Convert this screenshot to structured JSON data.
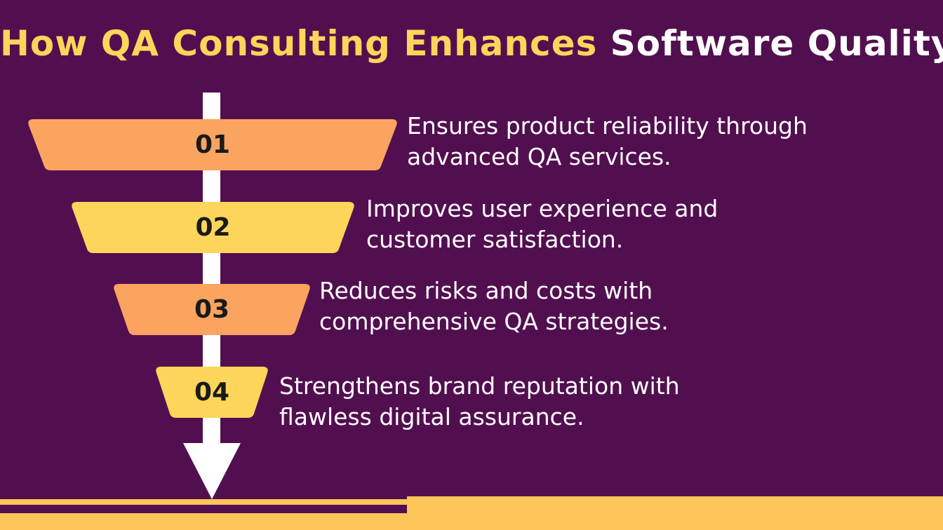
{
  "title": {
    "part1": "How QA Consulting Enhances",
    "part2": "Software Quality"
  },
  "colors": {
    "background": "#520f50",
    "accent_yellow": "#fdd55a",
    "accent_orange": "#fba460",
    "white": "#ffffff"
  },
  "steps": [
    {
      "number": "01",
      "line1": "Ensures product reliability through",
      "line2": "advanced QA services.",
      "color": "#fba460"
    },
    {
      "number": "02",
      "line1": "Improves user experience and",
      "line2": "customer satisfaction.",
      "color": "#fdd55a"
    },
    {
      "number": "03",
      "line1": "Reduces risks and costs with",
      "line2": "comprehensive QA strategies.",
      "color": "#fba460"
    },
    {
      "number": "04",
      "line1": "Strengthens brand reputation with",
      "line2": "flawless digital assurance.",
      "color": "#fdd55a"
    }
  ]
}
